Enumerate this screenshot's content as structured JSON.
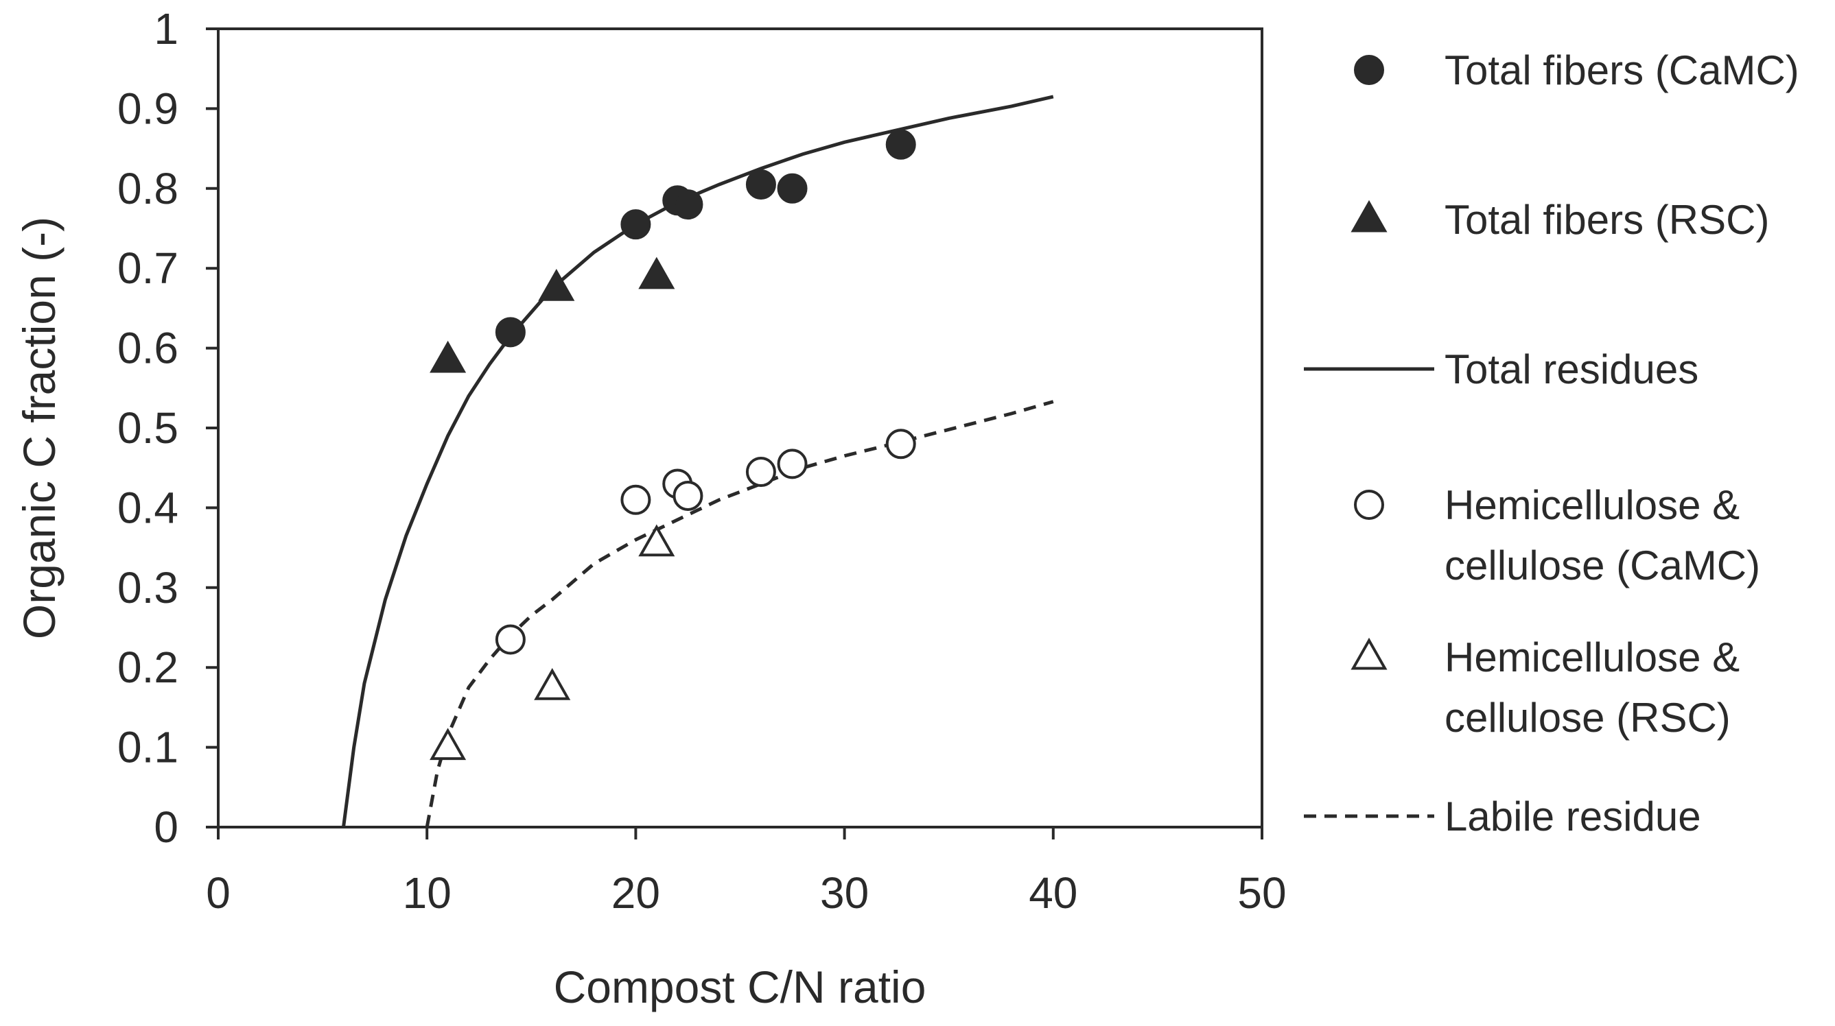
{
  "chart_data": {
    "type": "scatter",
    "title": "",
    "xlabel": "Compost C/N ratio",
    "ylabel": "Organic C fraction (-)",
    "xlim": [
      0,
      50
    ],
    "ylim": [
      0,
      1
    ],
    "x_ticks": [
      "0",
      "10",
      "20",
      "30",
      "40",
      "50"
    ],
    "y_ticks": [
      "0",
      "0.1",
      "0.2",
      "0.3",
      "0.4",
      "0.5",
      "0.6",
      "0.7",
      "0.8",
      "0.9",
      "1"
    ],
    "grid": false,
    "legend_position": "right",
    "series": [
      {
        "name": "Total fibers (CaMC)",
        "kind": "points",
        "marker": "circle-filled",
        "x": [
          14,
          20,
          22,
          22.5,
          26,
          27.5,
          32.7
        ],
        "y": [
          0.62,
          0.755,
          0.785,
          0.78,
          0.805,
          0.8,
          0.855
        ]
      },
      {
        "name": "Total fibers (RSC)",
        "kind": "points",
        "marker": "triangle-filled",
        "x": [
          11,
          16.2,
          21
        ],
        "y": [
          0.585,
          0.675,
          0.69
        ]
      },
      {
        "name": "Total residues",
        "kind": "line",
        "style": "solid",
        "x": [
          6,
          6.5,
          7,
          8,
          9,
          10,
          11,
          12,
          13,
          14,
          16,
          18,
          20,
          22,
          24,
          26,
          28,
          30,
          32,
          35,
          38,
          40
        ],
        "y": [
          0,
          0.1,
          0.18,
          0.285,
          0.365,
          0.43,
          0.49,
          0.54,
          0.58,
          0.615,
          0.675,
          0.72,
          0.755,
          0.783,
          0.805,
          0.825,
          0.843,
          0.858,
          0.87,
          0.888,
          0.903,
          0.915
        ]
      },
      {
        "name": "Hemicellulose & cellulose (CaMC)",
        "kind": "points",
        "marker": "circle-open",
        "x": [
          14,
          20,
          22,
          22.5,
          26,
          27.5,
          32.7
        ],
        "y": [
          0.235,
          0.41,
          0.43,
          0.415,
          0.445,
          0.455,
          0.48
        ]
      },
      {
        "name": "Hemicellulose & cellulose (RSC)",
        "kind": "points",
        "marker": "triangle-open",
        "x": [
          11,
          16,
          21
        ],
        "y": [
          0.1,
          0.175,
          0.355
        ]
      },
      {
        "name": "Labile residue",
        "kind": "line",
        "style": "dashed",
        "x": [
          10,
          10.5,
          11,
          12,
          13,
          14,
          15,
          16,
          18,
          20,
          22,
          24,
          26,
          28,
          30,
          32,
          35,
          38,
          40
        ],
        "y": [
          0,
          0.07,
          0.115,
          0.175,
          0.21,
          0.24,
          0.265,
          0.285,
          0.33,
          0.36,
          0.385,
          0.41,
          0.43,
          0.45,
          0.465,
          0.478,
          0.498,
          0.518,
          0.533
        ]
      }
    ],
    "legend": [
      {
        "label_lines": [
          "Total fibers (CaMC)"
        ],
        "symbol": "circle-filled"
      },
      {
        "label_lines": [
          "Total fibers (RSC)"
        ],
        "symbol": "triangle-filled"
      },
      {
        "label_lines": [
          "Total residues"
        ],
        "symbol": "line-solid"
      },
      {
        "label_lines": [
          "Hemicellulose &",
          "cellulose (CaMC)"
        ],
        "symbol": "circle-open"
      },
      {
        "label_lines": [
          "Hemicellulose &",
          "cellulose (RSC)"
        ],
        "symbol": "triangle-open"
      },
      {
        "label_lines": [
          "Labile residue"
        ],
        "symbol": "line-dashed"
      }
    ],
    "colors": {
      "ink": "#2a2a2a",
      "background": "#ffffff"
    }
  }
}
